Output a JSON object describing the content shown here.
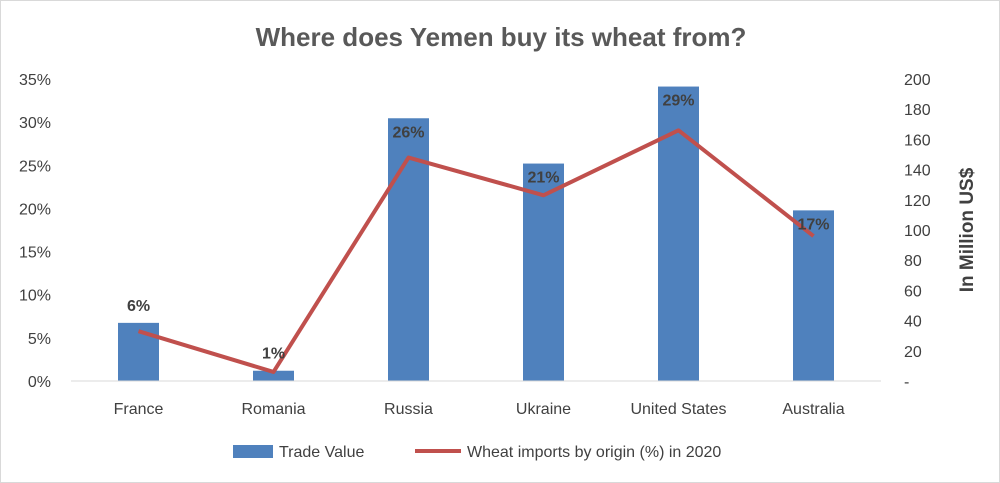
{
  "chart_data": {
    "type": "bar",
    "title": "Where does Yemen buy its wheat from?",
    "categories": [
      "France",
      "Romania",
      "Russia",
      "Ukraine",
      "United States",
      "Australia"
    ],
    "series": [
      {
        "name": "Trade Value",
        "type": "bar",
        "axis": "right",
        "values": [
          38.5,
          6.8,
          174,
          144,
          195,
          113
        ]
      },
      {
        "name": "Wheat imports by origin (%) in 2020",
        "type": "line",
        "axis": "right",
        "values": [
          33,
          6,
          148,
          123,
          166,
          96
        ],
        "data_labels": [
          "6%",
          "1%",
          "26%",
          "21%",
          "29%",
          "17%"
        ]
      }
    ],
    "y_left": {
      "ticks": [
        "0%",
        "5%",
        "10%",
        "15%",
        "20%",
        "25%",
        "30%",
        "35%"
      ],
      "ylim": [
        0,
        35
      ]
    },
    "y_right": {
      "label": "In Million US$",
      "ticks": [
        "-",
        "20",
        "40",
        "60",
        "80",
        "100",
        "120",
        "140",
        "160",
        "180",
        "200"
      ],
      "ylim": [
        0,
        200
      ]
    },
    "grid": false,
    "legend_position": "bottom",
    "colors": {
      "bar": "#4f81bd",
      "line": "#c0504d",
      "title": "#595959",
      "text": "#404040",
      "axis": "#d9d9d9"
    }
  }
}
